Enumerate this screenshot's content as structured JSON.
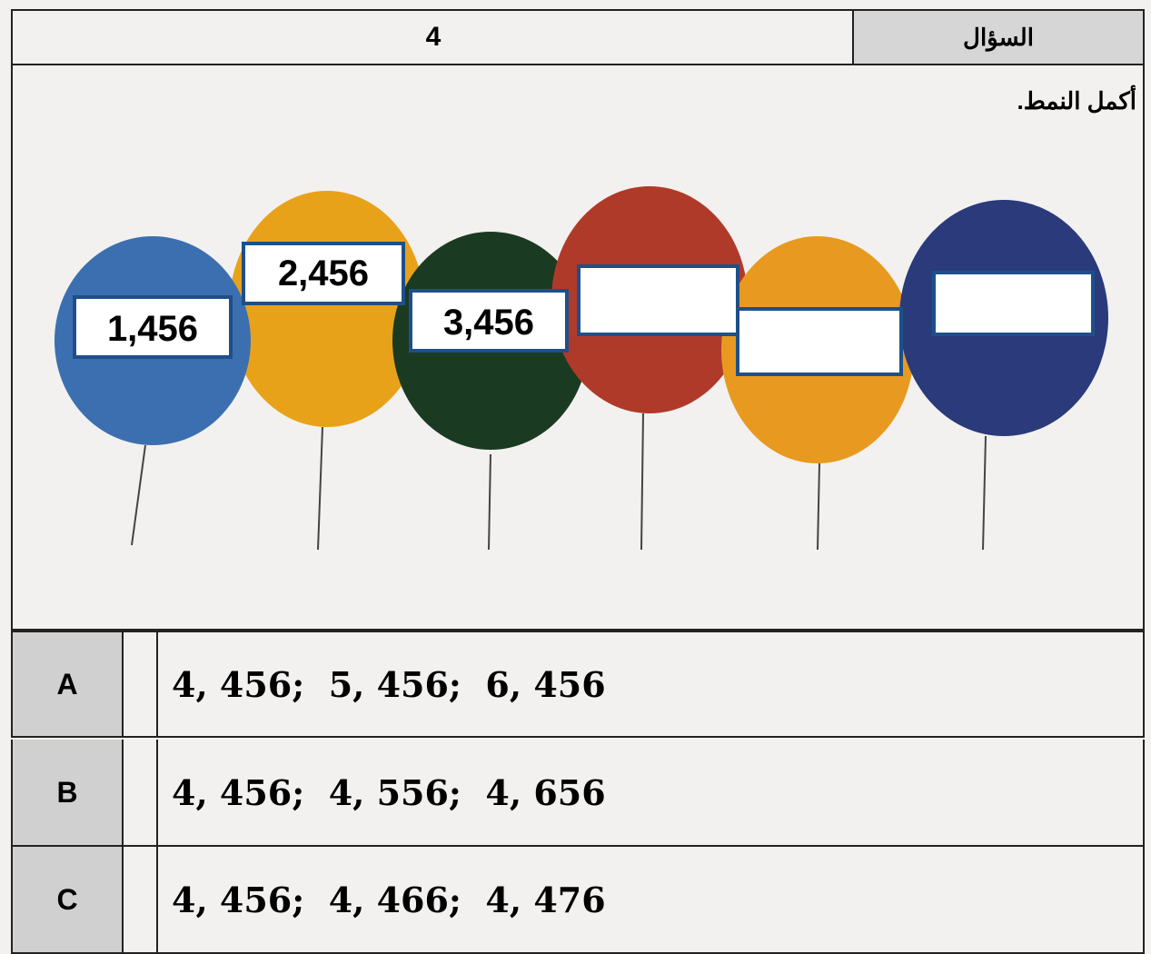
{
  "header": {
    "label": "السؤال",
    "number": "4"
  },
  "question": "أكمل النمط.",
  "balloons": [
    "1,456",
    "2,456",
    "3,456"
  ],
  "options": [
    {
      "letter": "A",
      "text": "4, 456;  5, 456;  6, 456"
    },
    {
      "letter": "B",
      "text": "4, 456;  4, 556;  4, 656"
    },
    {
      "letter": "C",
      "text": "4, 456;  4, 466;  4, 476"
    }
  ]
}
